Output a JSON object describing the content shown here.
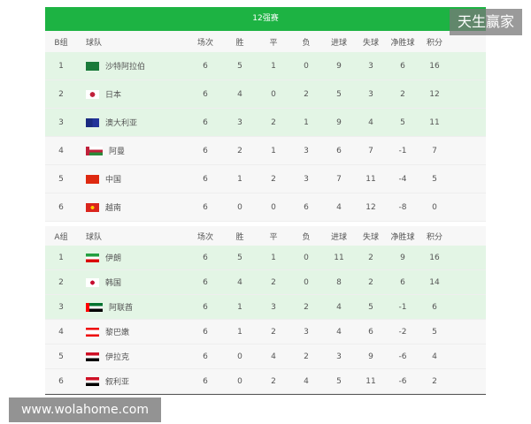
{
  "title": "12强赛",
  "columns": [
    "球队",
    "场次",
    "胜",
    "平",
    "负",
    "进球",
    "失球",
    "净胜球",
    "积分"
  ],
  "groups": [
    {
      "label": "B组",
      "rows": [
        {
          "rank": "1",
          "team": "沙特阿拉伯",
          "flag": "saudi-arabia",
          "stats": [
            "6",
            "5",
            "1",
            "0",
            "9",
            "3",
            "6",
            "16"
          ],
          "advance": true
        },
        {
          "rank": "2",
          "team": "日本",
          "flag": "japan",
          "stats": [
            "6",
            "4",
            "0",
            "2",
            "5",
            "3",
            "2",
            "12"
          ],
          "advance": true
        },
        {
          "rank": "3",
          "team": "澳大利亚",
          "flag": "australia",
          "stats": [
            "6",
            "3",
            "2",
            "1",
            "9",
            "4",
            "5",
            "11"
          ],
          "advance": true
        },
        {
          "rank": "4",
          "team": "阿曼",
          "flag": "oman",
          "stats": [
            "6",
            "2",
            "1",
            "3",
            "6",
            "7",
            "-1",
            "7"
          ],
          "advance": false
        },
        {
          "rank": "5",
          "team": "中国",
          "flag": "china",
          "stats": [
            "6",
            "1",
            "2",
            "3",
            "7",
            "11",
            "-4",
            "5"
          ],
          "advance": false
        },
        {
          "rank": "6",
          "team": "越南",
          "flag": "vietnam",
          "stats": [
            "6",
            "0",
            "0",
            "6",
            "4",
            "12",
            "-8",
            "0"
          ],
          "advance": false
        }
      ]
    },
    {
      "label": "A组",
      "rows": [
        {
          "rank": "1",
          "team": "伊朗",
          "flag": "iran",
          "stats": [
            "6",
            "5",
            "1",
            "0",
            "11",
            "2",
            "9",
            "16"
          ],
          "advance": true
        },
        {
          "rank": "2",
          "team": "韩国",
          "flag": "korea",
          "stats": [
            "6",
            "4",
            "2",
            "0",
            "8",
            "2",
            "6",
            "14"
          ],
          "advance": true
        },
        {
          "rank": "3",
          "team": "阿联酋",
          "flag": "uae",
          "stats": [
            "6",
            "1",
            "3",
            "2",
            "4",
            "5",
            "-1",
            "6"
          ],
          "advance": true
        },
        {
          "rank": "4",
          "team": "黎巴嫩",
          "flag": "lebanon",
          "stats": [
            "6",
            "1",
            "2",
            "3",
            "4",
            "6",
            "-2",
            "5"
          ],
          "advance": false
        },
        {
          "rank": "5",
          "team": "伊拉克",
          "flag": "iraq",
          "stats": [
            "6",
            "0",
            "4",
            "2",
            "3",
            "9",
            "-6",
            "4"
          ],
          "advance": false
        },
        {
          "rank": "6",
          "team": "叙利亚",
          "flag": "syria",
          "stats": [
            "6",
            "0",
            "2",
            "4",
            "5",
            "11",
            "-6",
            "2"
          ],
          "advance": false
        }
      ]
    }
  ],
  "watermarks": [
    "天生赢家",
    "www.wolahome.com"
  ],
  "colors": {
    "banner": "#1db343",
    "advance_row": "#e3f5e5"
  }
}
